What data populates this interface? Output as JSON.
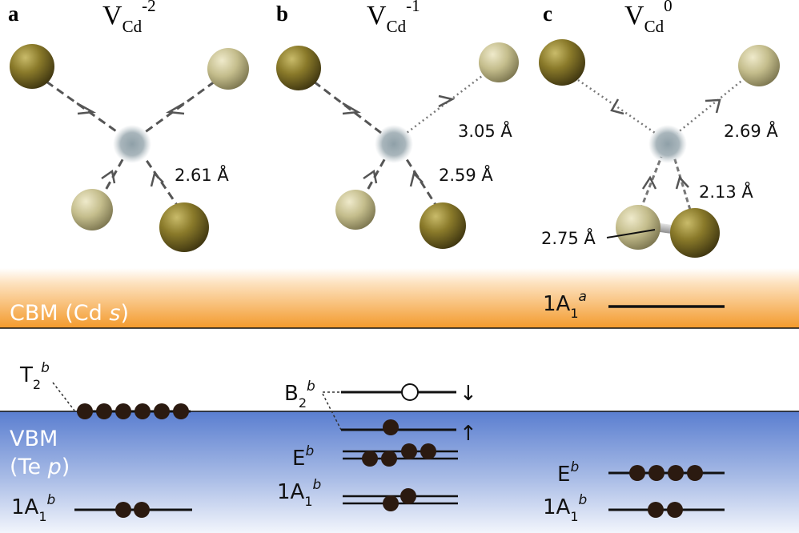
{
  "panels": [
    {
      "letter": "a",
      "defect": "V",
      "site": "Cd",
      "charge": "-2",
      "bond_label": "2.61 Å"
    },
    {
      "letter": "b",
      "defect": "V",
      "site": "Cd",
      "charge": "-1",
      "bond_label_upper": "3.05 Å",
      "bond_label_lower": "2.59 Å"
    },
    {
      "letter": "c",
      "defect": "V",
      "site": "Cd",
      "charge": "0",
      "bond_label_upper": "2.69 Å",
      "bond_label_lower": "2.13 Å",
      "dimer_label": "2.75 Å"
    }
  ],
  "bands": {
    "cbm": {
      "name": "CBM (Cd ",
      "orbital": "s",
      "close": ")"
    },
    "vbm": {
      "line1": "VBM",
      "line2_a": "(Te ",
      "orbital": "p",
      "line2_b": ")"
    }
  },
  "levels": {
    "a": {
      "t2": {
        "main": "T",
        "sub": "2",
        "sup": "b"
      },
      "a1": {
        "main": "1A",
        "sub": "1",
        "sup": "b"
      }
    },
    "b": {
      "b2": {
        "main": "B",
        "sub": "2",
        "sup": "b"
      },
      "e": {
        "main": "E",
        "sup": "b"
      },
      "a1": {
        "main": "1A",
        "sub": "1",
        "sup": "b"
      },
      "spin_down": "↓",
      "spin_up": "↑"
    },
    "c": {
      "a1_upper": {
        "main": "1A",
        "sub": "1",
        "sup": "a"
      },
      "e": {
        "main": "E",
        "sup": "b"
      },
      "a1": {
        "main": "1A",
        "sub": "1",
        "sup": "b"
      }
    }
  },
  "colors": {
    "cd_atom": "#8a7a2a",
    "te_atom": "#c4bd8c",
    "vacancy": "#8fa0a8",
    "cbm_orange": "#f39a2c",
    "vbm_blue": "#5a7ed0",
    "electron": "#2b1a10"
  }
}
